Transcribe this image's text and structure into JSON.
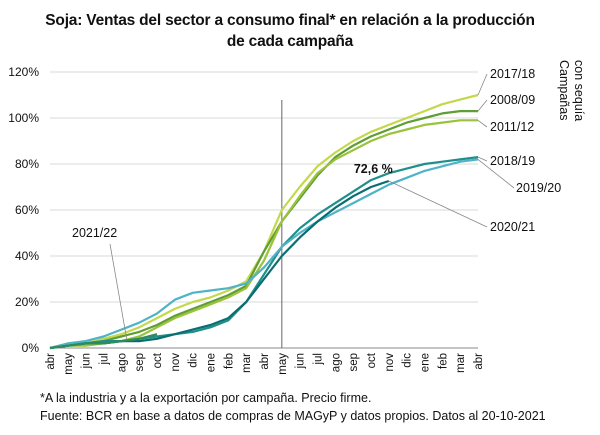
{
  "title_line1": "Soja: Ventas del sector a consumo final* en relación a la producción",
  "title_line2": "de cada campaña",
  "footnote1": "*A la industria y a la exportación por campaña. Precio firme.",
  "footnote2": "Fuente: BCR en base a datos de compras de MAGyP y datos propios. Datos al 20-10-2021",
  "side_label": [
    "Campañas",
    "con sequía"
  ],
  "chart_data": {
    "type": "line",
    "x_ticks": [
      "abr",
      "may",
      "jun",
      "jul",
      "ago",
      "sep",
      "oct",
      "nov",
      "dic",
      "ene",
      "feb",
      "mar",
      "abr",
      "may",
      "jun",
      "jul",
      "ago",
      "sep",
      "oct",
      "nov",
      "dic",
      "ene",
      "feb",
      "mar",
      "abr"
    ],
    "y_ticks": [
      "0%",
      "20%",
      "40%",
      "60%",
      "80%",
      "100%",
      "120%"
    ],
    "ylim": [
      0,
      120
    ],
    "grid": true,
    "vertical_marker_month": 13,
    "annotation": {
      "text": "72,6 %",
      "month": 19,
      "value": 72.6
    },
    "series": [
      {
        "name": "2017/18",
        "color": "#c3d84a",
        "x": [
          0,
          1,
          2,
          3,
          4,
          5,
          6,
          7,
          8,
          9,
          10,
          11,
          12,
          13,
          14,
          15,
          16,
          17,
          18,
          19,
          20,
          21,
          22,
          23,
          24
        ],
        "values": [
          0,
          1,
          2,
          4,
          6,
          9,
          13,
          17,
          20,
          22,
          25,
          29,
          42,
          60,
          70,
          79,
          85,
          90,
          94,
          97,
          100,
          103,
          106,
          108,
          110
        ]
      },
      {
        "name": "2008/09",
        "color": "#5e9e35",
        "x": [
          0,
          1,
          2,
          3,
          4,
          5,
          6,
          7,
          8,
          9,
          10,
          11,
          12,
          13,
          14,
          15,
          16,
          17,
          18,
          19,
          20,
          21,
          22,
          23,
          24
        ],
        "values": [
          0,
          1,
          2,
          3,
          5,
          7,
          10,
          14,
          17,
          20,
          23,
          27,
          42,
          55,
          65,
          75,
          83,
          88,
          92,
          95,
          98,
          100,
          102,
          103,
          103
        ]
      },
      {
        "name": "2011/12",
        "color": "#9ac23a",
        "x": [
          0,
          1,
          2,
          3,
          4,
          5,
          6,
          7,
          8,
          9,
          10,
          11,
          12,
          13,
          14,
          15,
          16,
          17,
          18,
          19,
          20,
          21,
          22,
          23,
          24
        ],
        "values": [
          0,
          1,
          1,
          2,
          3,
          5,
          9,
          13,
          16,
          19,
          22,
          26,
          38,
          55,
          66,
          76,
          82,
          86,
          90,
          93,
          95,
          97,
          98,
          99,
          99
        ]
      },
      {
        "name": "2018/19",
        "color": "#1f8f8c",
        "x": [
          0,
          1,
          2,
          3,
          4,
          5,
          6,
          7,
          8,
          9,
          10,
          11,
          12,
          13,
          14,
          15,
          16,
          17,
          18,
          19,
          20,
          21,
          22,
          23,
          24
        ],
        "values": [
          0,
          1,
          2,
          3,
          3,
          4,
          5,
          6,
          7,
          9,
          12,
          20,
          32,
          44,
          52,
          58,
          63,
          68,
          73,
          76,
          78,
          80,
          81,
          82,
          83
        ]
      },
      {
        "name": "2019/20",
        "color": "#4fb3c8",
        "x": [
          0,
          1,
          2,
          3,
          4,
          5,
          6,
          7,
          8,
          9,
          10,
          11,
          12,
          13,
          14,
          15,
          16,
          17,
          18,
          19,
          20,
          21,
          22,
          23,
          24
        ],
        "values": [
          0,
          2,
          3,
          5,
          8,
          11,
          15,
          21,
          24,
          25,
          26,
          28,
          35,
          44,
          50,
          55,
          59,
          63,
          67,
          71,
          74,
          77,
          79,
          81,
          82
        ]
      },
      {
        "name": "2020/21",
        "color": "#0a6e70",
        "x": [
          0,
          1,
          2,
          3,
          4,
          5,
          6,
          7,
          8,
          9,
          10,
          11,
          12,
          13,
          14,
          15,
          16,
          17,
          18,
          19
        ],
        "values": [
          0,
          1,
          2,
          2,
          3,
          3,
          4,
          6,
          8,
          10,
          13,
          20,
          30,
          40,
          48,
          55,
          61,
          66,
          70,
          72.6
        ]
      },
      {
        "name": "2021/22",
        "color": "#2e8b5a",
        "x": [
          0,
          1,
          2,
          3,
          4,
          5,
          6
        ],
        "values": [
          0,
          1,
          2,
          2,
          3,
          4,
          6
        ]
      }
    ]
  }
}
